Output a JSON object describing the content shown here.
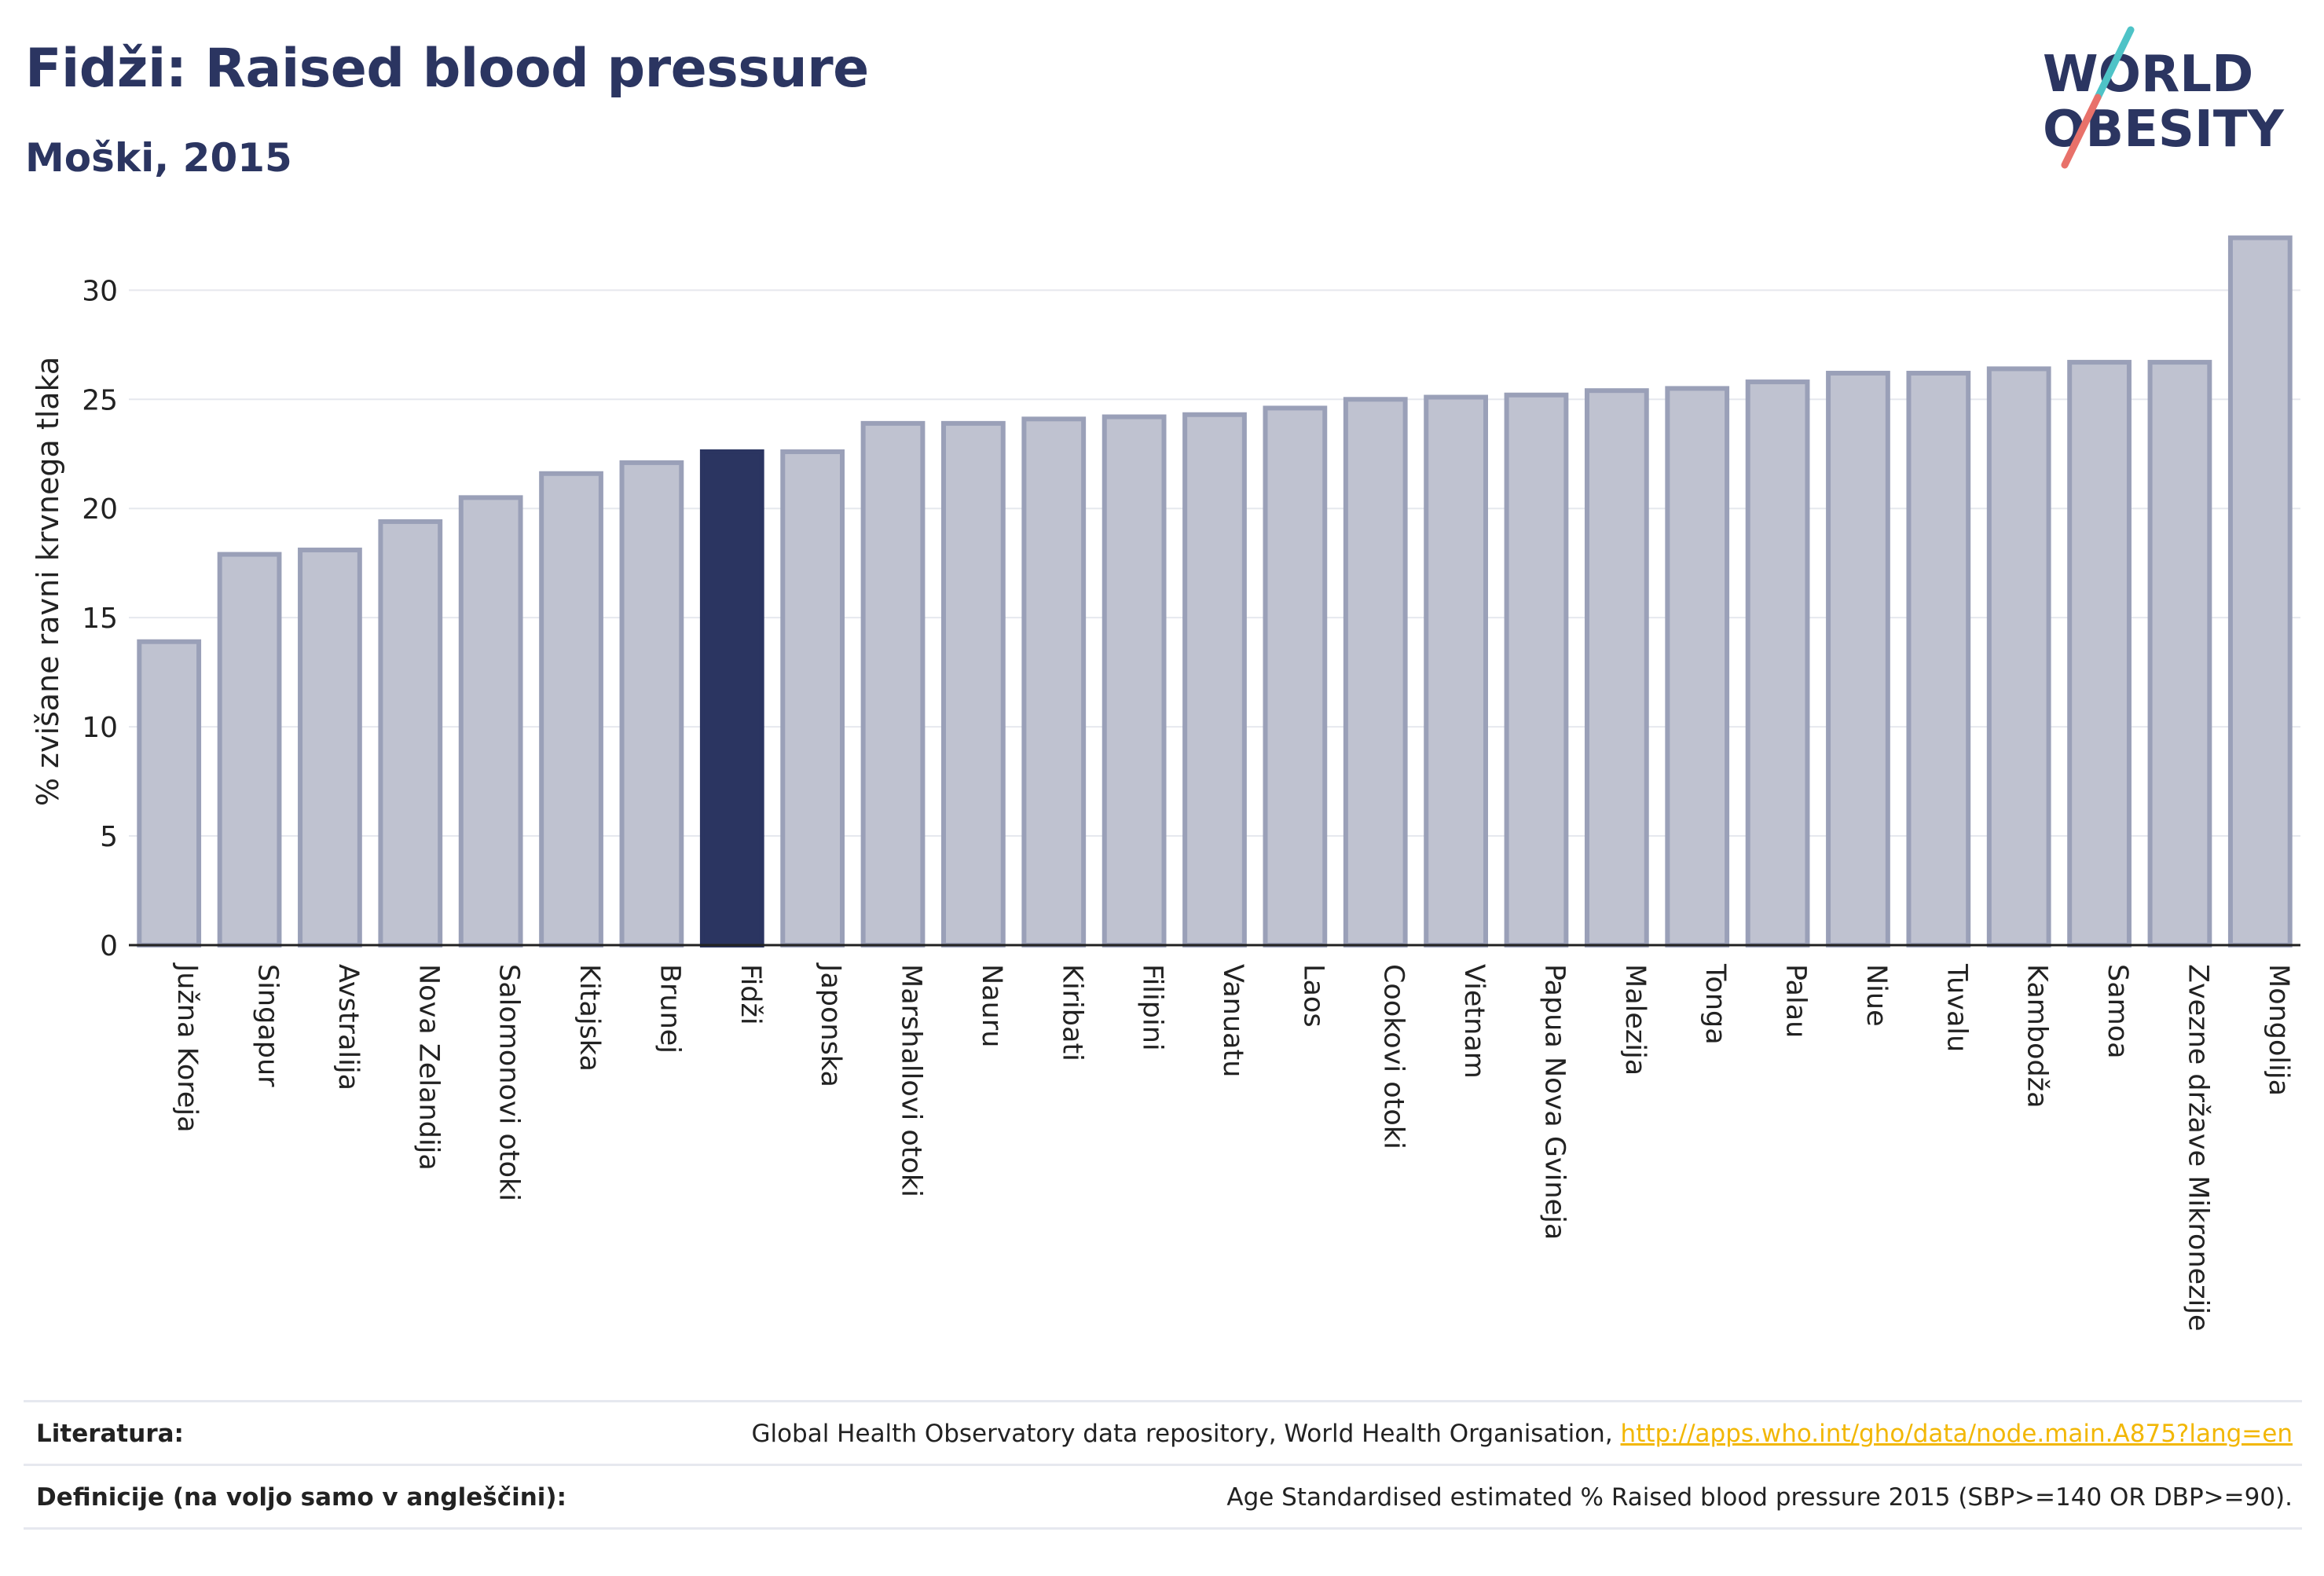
{
  "title": "Fidži: Raised blood pressure",
  "subtitle": "Moški, 2015",
  "logo": {
    "line1": "WORLD",
    "line2": "OBESITY",
    "slash_colors": [
      "#4ec3c7",
      "#e8716a"
    ],
    "text_color": "#2b3561"
  },
  "colors": {
    "bar": "#bfc2d0",
    "bar_edge": "#9aa0b8",
    "highlight": "#2b3561",
    "grid": "#e6e8ee",
    "axis": "#222222"
  },
  "chart_data": {
    "type": "bar",
    "ylabel": "% zvišane ravni krvnega tlaka",
    "xlabel": "",
    "ylim": [
      0,
      33
    ],
    "yticks": [
      0,
      5,
      10,
      15,
      20,
      25,
      30
    ],
    "grid": true,
    "highlight": "Fidži",
    "categories": [
      "Južna Koreja",
      "Singapur",
      "Avstralija",
      "Nova Zelandija",
      "Salomonovi otoki",
      "Kitajska",
      "Brunej",
      "Fidži",
      "Japonska",
      "Marshallovi otoki",
      "Nauru",
      "Kiribati",
      "Filipini",
      "Vanuatu",
      "Laos",
      "Cookovi otoki",
      "Vietnam",
      "Papua Nova Gvineja",
      "Malezija",
      "Tonga",
      "Palau",
      "Niue",
      "Tuvalu",
      "Kambodža",
      "Samoa",
      "Zvezne države Mikronezije",
      "Mongolija"
    ],
    "values": [
      13.9,
      17.9,
      18.1,
      19.4,
      20.5,
      21.6,
      22.1,
      22.6,
      22.6,
      23.9,
      23.9,
      24.1,
      24.2,
      24.3,
      24.6,
      25.0,
      25.1,
      25.2,
      25.4,
      25.5,
      25.8,
      26.2,
      26.2,
      26.4,
      26.7,
      26.7,
      32.4
    ]
  },
  "footer": {
    "sources_label": "Literatura:",
    "sources_text": "Global Health Observatory data repository, World Health Organisation, ",
    "sources_link": "http://apps.who.int/gho/data/node.main.A875?lang=en",
    "definitions_label": "Definicije (na voljo samo v angleščini):",
    "definitions_text": "Age Standardised estimated % Raised blood pressure 2015 (SBP>=140 OR DBP>=90)."
  }
}
